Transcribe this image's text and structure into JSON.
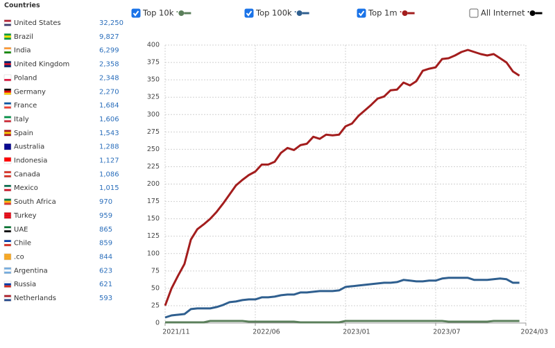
{
  "countries": {
    "title": "Countries",
    "rows": [
      {
        "name": "United States",
        "value": "32,250"
      },
      {
        "name": "Brazil",
        "value": "9,827"
      },
      {
        "name": "India",
        "value": "6,299"
      },
      {
        "name": "United Kingdom",
        "value": "2,358"
      },
      {
        "name": "Poland",
        "value": "2,348"
      },
      {
        "name": "Germany",
        "value": "2,270"
      },
      {
        "name": "France",
        "value": "1,684"
      },
      {
        "name": "Italy",
        "value": "1,606"
      },
      {
        "name": "Spain",
        "value": "1,543"
      },
      {
        "name": "Australia",
        "value": "1,288"
      },
      {
        "name": "Indonesia",
        "value": "1,127"
      },
      {
        "name": "Canada",
        "value": "1,086"
      },
      {
        "name": "Mexico",
        "value": "1,015"
      },
      {
        "name": "South Africa",
        "value": "970"
      },
      {
        "name": "Turkey",
        "value": "959"
      },
      {
        "name": "UAE",
        "value": "865"
      },
      {
        "name": "Chile",
        "value": "859"
      },
      {
        "name": ".co",
        "value": "844"
      },
      {
        "name": "Argentina",
        "value": "623"
      },
      {
        "name": "Russia",
        "value": "621"
      },
      {
        "name": "Netherlands",
        "value": "593"
      }
    ]
  },
  "chart_data": {
    "type": "line",
    "xlim": [
      0,
      56
    ],
    "xticks": [
      {
        "value": 0,
        "label": "2021/11"
      },
      {
        "value": 14,
        "label": "2022/06"
      },
      {
        "value": 28,
        "label": "2023/01"
      },
      {
        "value": 42,
        "label": "2023/07"
      },
      {
        "value": 56,
        "label": "2024/03"
      }
    ],
    "ylim": [
      0,
      400
    ],
    "yticks": [
      0,
      25,
      50,
      75,
      100,
      125,
      150,
      175,
      200,
      225,
      250,
      275,
      300,
      325,
      350,
      375,
      400
    ],
    "grid": true,
    "x": [
      0,
      1,
      2,
      3,
      4,
      5,
      6,
      7,
      8,
      9,
      10,
      11,
      12,
      13,
      14,
      15,
      16,
      17,
      18,
      19,
      20,
      21,
      22,
      23,
      24,
      25,
      26,
      27,
      28,
      29,
      30,
      31,
      32,
      33,
      34,
      35,
      36,
      37,
      38,
      39,
      40,
      41,
      42,
      43,
      44,
      45,
      46,
      47,
      48,
      49,
      50,
      51,
      52,
      53,
      54,
      55
    ],
    "series": [
      {
        "name": "Top 10k",
        "color": "#5b7f5b",
        "checked": true,
        "values": [
          1,
          1,
          1,
          1,
          1,
          1,
          1,
          3,
          3,
          3,
          3,
          3,
          3,
          2,
          2,
          2,
          2,
          2,
          2,
          2,
          2,
          1,
          1,
          1,
          1,
          1,
          1,
          1,
          3,
          3,
          3,
          3,
          3,
          3,
          3,
          3,
          3,
          3,
          3,
          3,
          3,
          3,
          3,
          3,
          2,
          2,
          2,
          2,
          2,
          2,
          2,
          3,
          3,
          3,
          3,
          3
        ]
      },
      {
        "name": "Top 100k",
        "color": "#2f5f8f",
        "checked": true,
        "values": [
          8,
          11,
          12,
          13,
          20,
          21,
          21,
          21,
          23,
          26,
          30,
          31,
          33,
          34,
          34,
          37,
          37,
          38,
          40,
          41,
          41,
          44,
          44,
          45,
          46,
          46,
          46,
          47,
          52,
          53,
          54,
          55,
          56,
          57,
          58,
          58,
          59,
          62,
          61,
          60,
          60,
          61,
          61,
          64,
          65,
          65,
          65,
          65,
          62,
          62,
          62,
          63,
          64,
          63,
          58,
          58
        ]
      },
      {
        "name": "Top 1m",
        "color": "#a31d1d",
        "checked": true,
        "values": [
          25,
          50,
          68,
          85,
          120,
          135,
          142,
          150,
          160,
          172,
          185,
          198,
          206,
          213,
          218,
          228,
          228,
          232,
          245,
          252,
          249,
          256,
          258,
          268,
          265,
          271,
          270,
          271,
          283,
          287,
          298,
          306,
          314,
          323,
          326,
          335,
          336,
          346,
          342,
          348,
          363,
          366,
          368,
          380,
          381,
          385,
          390,
          393,
          390,
          387,
          385,
          387,
          381,
          375,
          362,
          356
        ]
      },
      {
        "name": "All Internet",
        "color": "#000000",
        "checked": false
      }
    ]
  }
}
